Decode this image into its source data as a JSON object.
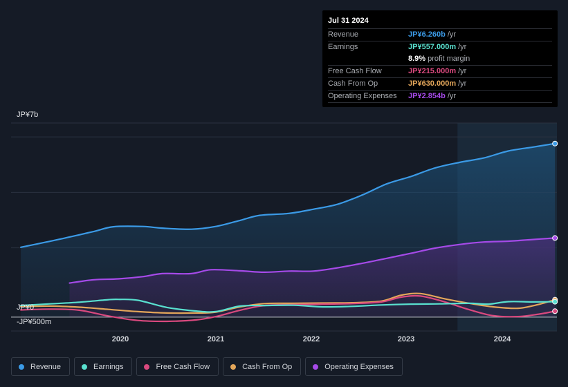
{
  "tooltip": {
    "date": "Jul 31 2024",
    "rows": [
      {
        "label": "Revenue",
        "value": "JP¥6.260b",
        "unit": "/yr",
        "color": "#3b9ae6"
      },
      {
        "label": "Earnings",
        "value": "JP¥557.000m",
        "unit": "/yr",
        "color": "#59e0cf"
      },
      {
        "label": "Free Cash Flow",
        "value": "JP¥215.000m",
        "unit": "/yr",
        "color": "#d9497e"
      },
      {
        "label": "Cash From Op",
        "value": "JP¥630.000m",
        "unit": "/yr",
        "color": "#e3a65a"
      },
      {
        "label": "Operating Expenses",
        "value": "JP¥2.854b",
        "unit": "/yr",
        "color": "#a54ae8"
      }
    ],
    "margin_value": "8.9%",
    "margin_text": "profit margin"
  },
  "axis": {
    "y_top_label": "JP¥7b",
    "y_zero_label": "JP¥0",
    "y_neg_label": "-JP¥500m"
  },
  "legend": [
    {
      "label": "Revenue",
      "color": "#3b9ae6"
    },
    {
      "label": "Earnings",
      "color": "#59e0cf"
    },
    {
      "label": "Free Cash Flow",
      "color": "#d9497e"
    },
    {
      "label": "Cash From Op",
      "color": "#e3a65a"
    },
    {
      "label": "Operating Expenses",
      "color": "#a54ae8"
    }
  ],
  "chart_data": {
    "type": "area",
    "title": "",
    "units": "JP¥ billions per year",
    "ylim": [
      -0.5,
      7
    ],
    "xlim": [
      2019.0,
      2024.6
    ],
    "x_ticks": [
      2020,
      2021,
      2022,
      2023,
      2024
    ],
    "x_tick_labels": [
      "2020",
      "2021",
      "2022",
      "2023",
      "2024"
    ],
    "highlight_start": 2023.58,
    "series": [
      {
        "name": "Revenue",
        "color": "#3b9ae6",
        "x": [
          2019.1,
          2019.35,
          2019.6,
          2019.85,
          2020.05,
          2020.35,
          2020.55,
          2020.85,
          2021.1,
          2021.35,
          2021.55,
          2021.85,
          2022.1,
          2022.35,
          2022.6,
          2022.85,
          2023.1,
          2023.35,
          2023.6,
          2023.85,
          2024.1,
          2024.35,
          2024.58
        ],
        "values": [
          2.52,
          2.7,
          2.89,
          3.09,
          3.26,
          3.27,
          3.21,
          3.17,
          3.27,
          3.49,
          3.67,
          3.74,
          3.89,
          4.07,
          4.4,
          4.8,
          5.07,
          5.38,
          5.58,
          5.74,
          5.99,
          6.13,
          6.26
        ]
      },
      {
        "name": "Operating Expenses",
        "color": "#a54ae8",
        "x": [
          2019.6,
          2019.85,
          2020.1,
          2020.35,
          2020.55,
          2020.85,
          2021.05,
          2021.35,
          2021.6,
          2021.85,
          2022.1,
          2022.35,
          2022.6,
          2022.85,
          2023.1,
          2023.35,
          2023.6,
          2023.85,
          2024.1,
          2024.35,
          2024.58
        ],
        "values": [
          1.23,
          1.35,
          1.38,
          1.46,
          1.57,
          1.57,
          1.71,
          1.67,
          1.62,
          1.66,
          1.66,
          1.78,
          1.94,
          2.12,
          2.3,
          2.49,
          2.62,
          2.71,
          2.74,
          2.8,
          2.854
        ]
      },
      {
        "name": "Earnings",
        "color": "#59e0cf",
        "x": [
          2019.1,
          2019.4,
          2019.7,
          2020.0,
          2020.1,
          2020.3,
          2020.6,
          2020.9,
          2021.1,
          2021.35,
          2021.6,
          2021.9,
          2022.2,
          2022.5,
          2022.8,
          2023.1,
          2023.4,
          2023.7,
          2023.9,
          2024.1,
          2024.35,
          2024.58
        ],
        "values": [
          0.42,
          0.48,
          0.54,
          0.63,
          0.64,
          0.61,
          0.35,
          0.22,
          0.2,
          0.4,
          0.42,
          0.43,
          0.37,
          0.39,
          0.44,
          0.47,
          0.48,
          0.5,
          0.47,
          0.56,
          0.55,
          0.557
        ]
      },
      {
        "name": "Free Cash Flow",
        "color": "#d9497e",
        "x": [
          2019.1,
          2019.4,
          2019.7,
          2020.0,
          2020.3,
          2020.6,
          2020.9,
          2021.1,
          2021.35,
          2021.6,
          2021.9,
          2022.2,
          2022.5,
          2022.8,
          2023.0,
          2023.2,
          2023.45,
          2023.7,
          2023.95,
          2024.2,
          2024.4,
          2024.58
        ],
        "values": [
          0.26,
          0.29,
          0.25,
          0.04,
          -0.12,
          -0.15,
          -0.1,
          0.02,
          0.25,
          0.42,
          0.45,
          0.47,
          0.49,
          0.55,
          0.72,
          0.76,
          0.55,
          0.27,
          0.05,
          0.02,
          0.1,
          0.215
        ]
      },
      {
        "name": "Cash From Op",
        "color": "#e3a65a",
        "x": [
          2019.1,
          2019.4,
          2019.7,
          2020.0,
          2020.3,
          2020.6,
          2020.9,
          2021.1,
          2021.35,
          2021.6,
          2021.9,
          2022.2,
          2022.5,
          2022.8,
          2023.0,
          2023.2,
          2023.45,
          2023.7,
          2023.95,
          2024.2,
          2024.4,
          2024.58
        ],
        "values": [
          0.38,
          0.4,
          0.36,
          0.28,
          0.2,
          0.15,
          0.15,
          0.18,
          0.37,
          0.49,
          0.5,
          0.51,
          0.52,
          0.58,
          0.79,
          0.85,
          0.66,
          0.5,
          0.37,
          0.32,
          0.45,
          0.63
        ]
      }
    ]
  }
}
